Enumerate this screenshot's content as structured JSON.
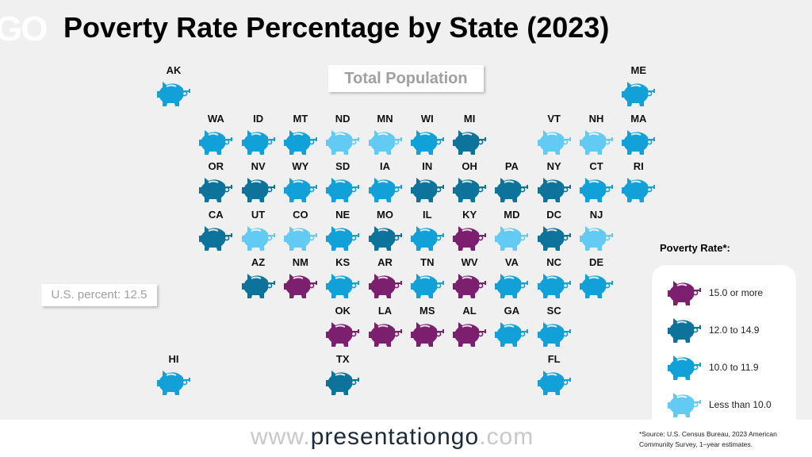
{
  "logo_text": "GO",
  "chart_data": {
    "type": "tile-map",
    "title": "Poverty Rate Percentage by State (2023)",
    "subtitle": "Total Population",
    "us_percent_label": "U.S. percent: 12.5",
    "legend": {
      "title": "Poverty Rate*:",
      "placement": "bottom-right",
      "categories": [
        {
          "key": "c4",
          "label": "15.0 or more",
          "color": "#7b1f6e"
        },
        {
          "key": "c3",
          "label": "12.0 to 14.9",
          "color": "#0e739b"
        },
        {
          "key": "c2",
          "label": "10.0 to 11.9",
          "color": "#11a0d8"
        },
        {
          "key": "c1",
          "label": "Less than 10.0",
          "color": "#63cbf3"
        }
      ]
    },
    "states": [
      {
        "abbr": "AK",
        "cat": "c2"
      },
      {
        "abbr": "ME",
        "cat": "c2"
      },
      {
        "abbr": "WA",
        "cat": "c2"
      },
      {
        "abbr": "ID",
        "cat": "c2"
      },
      {
        "abbr": "MT",
        "cat": "c2"
      },
      {
        "abbr": "ND",
        "cat": "c1"
      },
      {
        "abbr": "MN",
        "cat": "c1"
      },
      {
        "abbr": "WI",
        "cat": "c2"
      },
      {
        "abbr": "MI",
        "cat": "c3"
      },
      {
        "abbr": "VT",
        "cat": "c1"
      },
      {
        "abbr": "NH",
        "cat": "c1"
      },
      {
        "abbr": "MA",
        "cat": "c2"
      },
      {
        "abbr": "OR",
        "cat": "c3"
      },
      {
        "abbr": "NV",
        "cat": "c3"
      },
      {
        "abbr": "WY",
        "cat": "c2"
      },
      {
        "abbr": "SD",
        "cat": "c2"
      },
      {
        "abbr": "IA",
        "cat": "c2"
      },
      {
        "abbr": "IN",
        "cat": "c3"
      },
      {
        "abbr": "OH",
        "cat": "c3"
      },
      {
        "abbr": "PA",
        "cat": "c3"
      },
      {
        "abbr": "NY",
        "cat": "c3"
      },
      {
        "abbr": "CT",
        "cat": "c2"
      },
      {
        "abbr": "RI",
        "cat": "c2"
      },
      {
        "abbr": "CA",
        "cat": "c3"
      },
      {
        "abbr": "UT",
        "cat": "c1"
      },
      {
        "abbr": "CO",
        "cat": "c1"
      },
      {
        "abbr": "NE",
        "cat": "c2"
      },
      {
        "abbr": "MO",
        "cat": "c3"
      },
      {
        "abbr": "IL",
        "cat": "c2"
      },
      {
        "abbr": "KY",
        "cat": "c4"
      },
      {
        "abbr": "MD",
        "cat": "c1"
      },
      {
        "abbr": "DC",
        "cat": "c3"
      },
      {
        "abbr": "NJ",
        "cat": "c1"
      },
      {
        "abbr": "AZ",
        "cat": "c3"
      },
      {
        "abbr": "NM",
        "cat": "c4"
      },
      {
        "abbr": "KS",
        "cat": "c2"
      },
      {
        "abbr": "AR",
        "cat": "c4"
      },
      {
        "abbr": "TN",
        "cat": "c2"
      },
      {
        "abbr": "WV",
        "cat": "c4"
      },
      {
        "abbr": "VA",
        "cat": "c2"
      },
      {
        "abbr": "NC",
        "cat": "c2"
      },
      {
        "abbr": "DE",
        "cat": "c2"
      },
      {
        "abbr": "OK",
        "cat": "c4"
      },
      {
        "abbr": "LA",
        "cat": "c4"
      },
      {
        "abbr": "MS",
        "cat": "c4"
      },
      {
        "abbr": "AL",
        "cat": "c4"
      },
      {
        "abbr": "GA",
        "cat": "c2"
      },
      {
        "abbr": "SC",
        "cat": "c2"
      },
      {
        "abbr": "HI",
        "cat": "c2"
      },
      {
        "abbr": "TX",
        "cat": "c3"
      },
      {
        "abbr": "FL",
        "cat": "c2"
      }
    ]
  },
  "footer": {
    "url_prefix": "www.",
    "url_main": "presentationgo",
    "url_suffix": ".com",
    "source_line1": "*Source: U.S. Census Bureau, 2023 American",
    "source_line2": "Community Survey, 1–year estimates."
  }
}
